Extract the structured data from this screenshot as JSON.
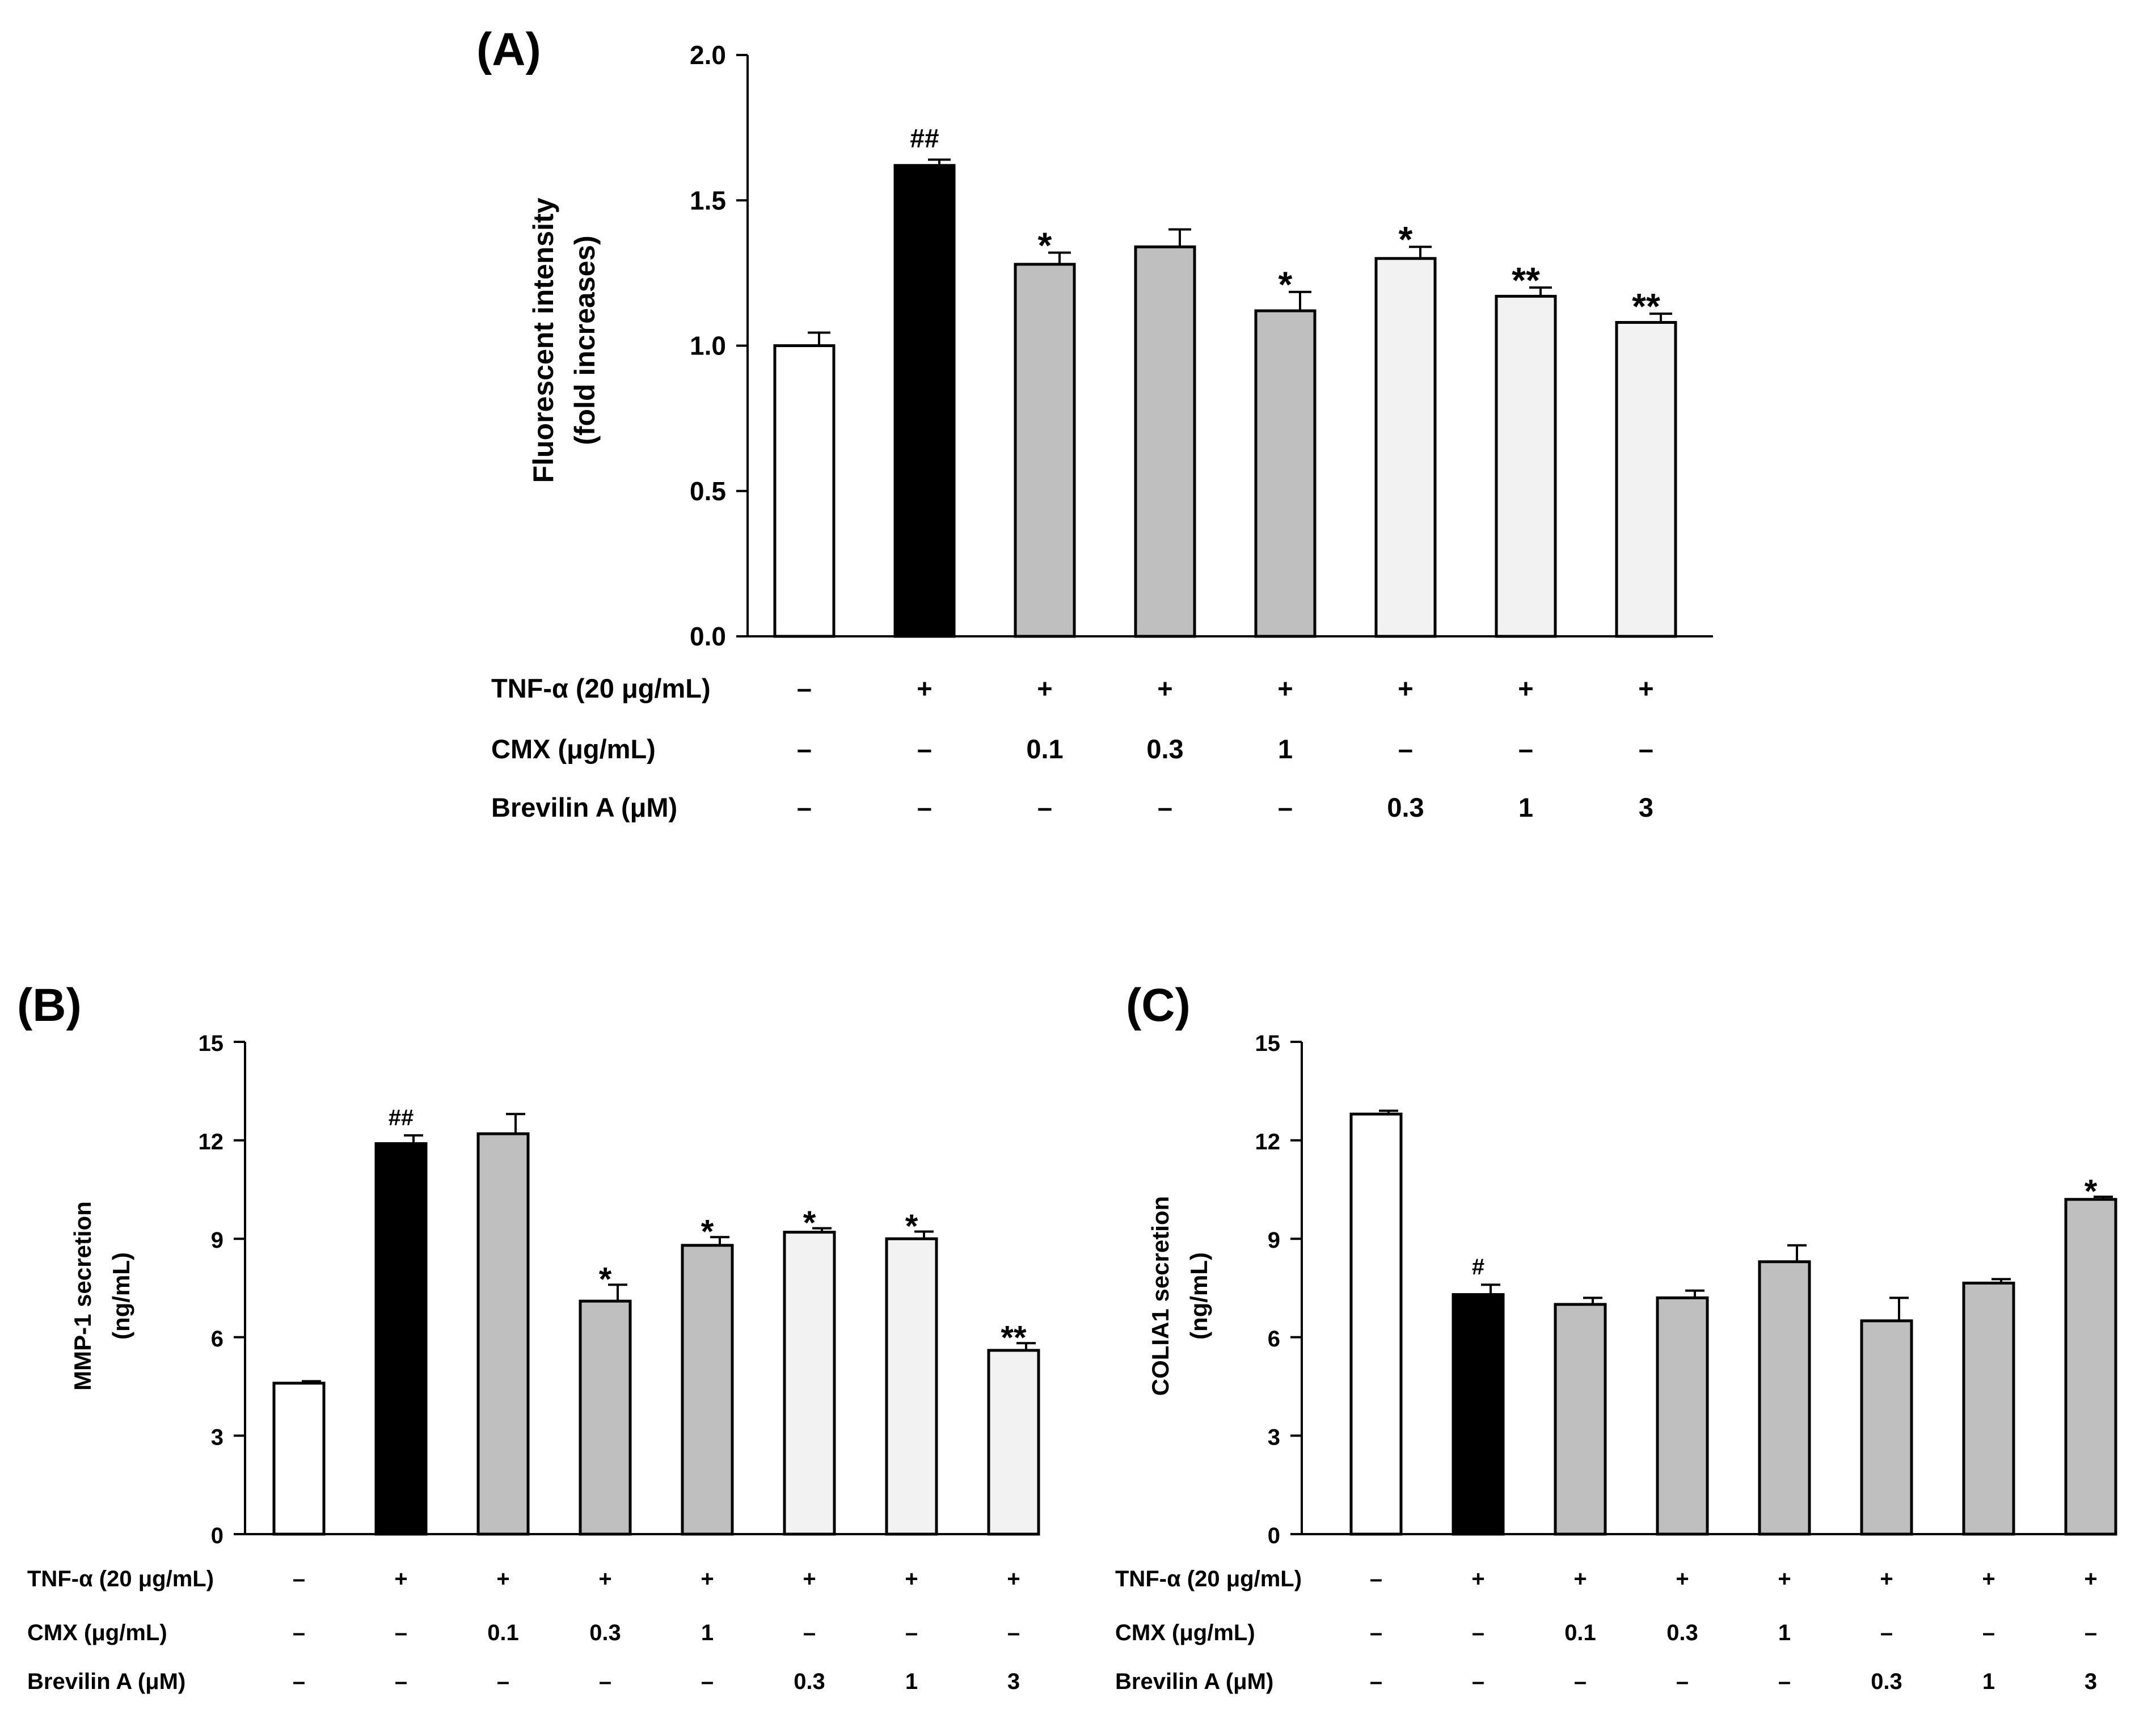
{
  "figure": {
    "conditions": {
      "rows": [
        {
          "label": "TNF-α (20 μg/mL)",
          "values": [
            "–",
            "+",
            "+",
            "+",
            "+",
            "+",
            "+",
            "+"
          ]
        },
        {
          "label": "CMX (μg/mL)",
          "values": [
            "–",
            "–",
            "0.1",
            "0.3",
            "1",
            "–",
            "–",
            "–"
          ]
        },
        {
          "label": "Brevilin A (μM)",
          "values": [
            "–",
            "–",
            "–",
            "–",
            "–",
            "0.3",
            "1",
            "3"
          ]
        }
      ]
    }
  },
  "chart_data": [
    {
      "id": "A",
      "panel_label": "(A)",
      "type": "bar",
      "ylabel_lines": [
        "Fluorescent intensity",
        "(fold increases)"
      ],
      "ylim": [
        0,
        2.0
      ],
      "yticks": [
        0.0,
        0.5,
        1.0,
        1.5,
        2.0
      ],
      "ytick_labels": [
        "0.0",
        "0.5",
        "1.0",
        "1.5",
        "2.0"
      ],
      "values": [
        1.0,
        1.62,
        1.28,
        1.34,
        1.12,
        1.3,
        1.17,
        1.08
      ],
      "errors": [
        0.045,
        0.02,
        0.04,
        0.06,
        0.065,
        0.04,
        0.03,
        0.03
      ],
      "annotations": [
        "",
        "##",
        "*",
        "",
        "*",
        "*",
        "**",
        "**"
      ],
      "colors": [
        "#ffffff",
        "#000000",
        "#bfbfbf",
        "#bfbfbf",
        "#bfbfbf",
        "#f2f2f2",
        "#f2f2f2",
        "#f2f2f2"
      ]
    },
    {
      "id": "B",
      "panel_label": "(B)",
      "type": "bar",
      "ylabel_lines": [
        "MMP-1 secretion",
        "(ng/mL)"
      ],
      "ylim": [
        0,
        15
      ],
      "yticks": [
        0,
        3,
        6,
        9,
        12,
        15
      ],
      "ytick_labels": [
        "0",
        "3",
        "6",
        "9",
        "12",
        "15"
      ],
      "values": [
        4.6,
        11.9,
        12.2,
        7.1,
        8.8,
        9.2,
        9.0,
        5.6
      ],
      "errors": [
        0.06,
        0.25,
        0.6,
        0.5,
        0.25,
        0.12,
        0.22,
        0.22
      ],
      "annotations": [
        "",
        "##",
        "",
        "*",
        "*",
        "*",
        "*",
        "**"
      ],
      "colors": [
        "#ffffff",
        "#000000",
        "#bfbfbf",
        "#bfbfbf",
        "#bfbfbf",
        "#f2f2f2",
        "#f2f2f2",
        "#f2f2f2"
      ]
    },
    {
      "id": "C",
      "panel_label": "(C)",
      "type": "bar",
      "ylabel_lines": [
        "COLIA1 secretion",
        "(ng/mL)"
      ],
      "ylim": [
        0,
        15
      ],
      "yticks": [
        0,
        3,
        6,
        9,
        12,
        15
      ],
      "ytick_labels": [
        "0",
        "3",
        "6",
        "9",
        "12",
        "15"
      ],
      "values": [
        12.8,
        7.3,
        7.0,
        7.2,
        8.3,
        6.5,
        7.65,
        10.2
      ],
      "errors": [
        0.1,
        0.3,
        0.2,
        0.22,
        0.5,
        0.7,
        0.12,
        0.08
      ],
      "annotations": [
        "",
        "#",
        "",
        "",
        "",
        "",
        "",
        "*"
      ],
      "colors": [
        "#ffffff",
        "#000000",
        "#bfbfbf",
        "#bfbfbf",
        "#bfbfbf",
        "#bfbfbf",
        "#bfbfbf",
        "#bfbfbf"
      ]
    }
  ]
}
